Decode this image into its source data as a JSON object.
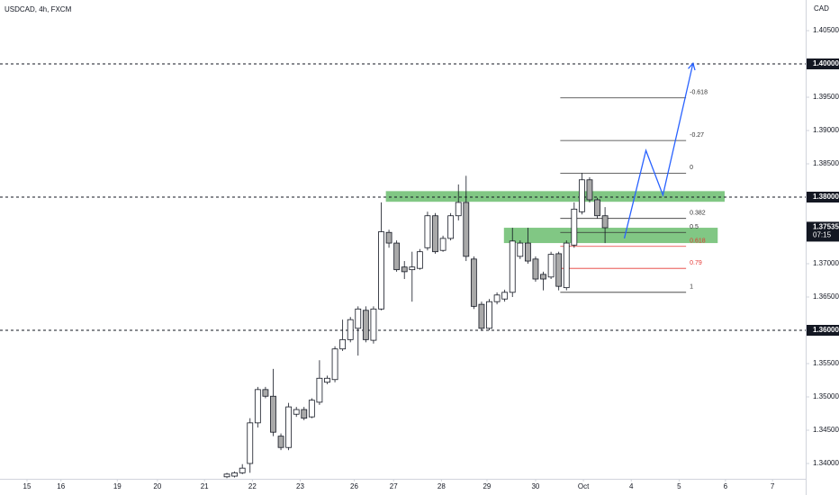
{
  "chart_data": {
    "type": "candlestick",
    "title": "USDCAD, 4h, FXCM",
    "currency": "CAD",
    "up_color": "#ffffff",
    "down_color": "#a9a9a9",
    "xlim": [
      0,
      104.4
    ],
    "ylim": [
      1.3377,
      1.4096
    ],
    "grid": false,
    "x": [
      29.4,
      30.4,
      31.4,
      32.4,
      33.4,
      34.4,
      35.4,
      36.4,
      37.4,
      38.4,
      39.4,
      40.4,
      41.4,
      42.4,
      43.4,
      44.4,
      45.4,
      46.4,
      47.4,
      48.4,
      49.4,
      50.4,
      51.4,
      52.4,
      53.4,
      54.4,
      55.4,
      56.4,
      57.4,
      58.4,
      59.4,
      60.4,
      61.4,
      62.4,
      63.4,
      64.4,
      65.4,
      66.4,
      67.4,
      68.4,
      69.4,
      70.4,
      71.4,
      72.4,
      73.4,
      74.4,
      75.4,
      76.4,
      77.4,
      78.4
    ],
    "open": [
      1.338,
      1.3381,
      1.3386,
      1.34,
      1.3461,
      1.3511,
      1.3501,
      1.3441,
      1.3424,
      1.3474,
      1.3481,
      1.347,
      1.3492,
      1.3522,
      1.3526,
      1.3572,
      1.3586,
      1.3603,
      1.363,
      1.3585,
      1.3632,
      1.3747,
      1.3731,
      1.3695,
      1.3691,
      1.3693,
      1.3724,
      1.3772,
      1.372,
      1.3738,
      1.3772,
      1.3792,
      1.3707,
      1.3639,
      1.3603,
      1.3643,
      1.3647,
      1.3657,
      1.3711,
      1.3731,
      1.3707,
      1.3684,
      1.368,
      1.3715,
      1.3664,
      1.3728,
      1.3778,
      1.3826,
      1.3796,
      1.3772
    ],
    "high": [
      1.3386,
      1.3388,
      1.3399,
      1.3468,
      1.3515,
      1.3515,
      1.3542,
      1.3445,
      1.3491,
      1.3485,
      1.3485,
      1.3498,
      1.3555,
      1.3532,
      1.3576,
      1.3616,
      1.362,
      1.3636,
      1.3636,
      1.3636,
      1.3792,
      1.3751,
      1.3735,
      1.3704,
      1.3718,
      1.3722,
      1.3778,
      1.3776,
      1.3742,
      1.3776,
      1.3819,
      1.3832,
      1.3711,
      1.3643,
      1.3647,
      1.3657,
      1.3661,
      1.3754,
      1.3735,
      1.3754,
      1.3711,
      1.3688,
      1.3718,
      1.3718,
      1.3735,
      1.3792,
      1.3836,
      1.383,
      1.3799,
      1.3785
    ],
    "low": [
      1.3378,
      1.3379,
      1.3384,
      1.3386,
      1.3454,
      1.3498,
      1.3441,
      1.342,
      1.342,
      1.347,
      1.3465,
      1.3468,
      1.3488,
      1.3519,
      1.3522,
      1.3569,
      1.3582,
      1.3562,
      1.3582,
      1.358,
      1.363,
      1.3724,
      1.3688,
      1.3677,
      1.3643,
      1.3691,
      1.372,
      1.3715,
      1.3718,
      1.3735,
      1.3765,
      1.3704,
      1.3632,
      1.36,
      1.36,
      1.3639,
      1.3643,
      1.365,
      1.3707,
      1.37,
      1.3673,
      1.366,
      1.3677,
      1.366,
      1.366,
      1.3724,
      1.3774,
      1.3792,
      1.3768,
      1.3731
    ],
    "close": [
      1.3384,
      1.3386,
      1.3393,
      1.3461,
      1.3511,
      1.3501,
      1.3447,
      1.3424,
      1.3485,
      1.3481,
      1.3468,
      1.3495,
      1.3528,
      1.3528,
      1.3572,
      1.3586,
      1.3616,
      1.3632,
      1.3586,
      1.3632,
      1.3748,
      1.3731,
      1.3691,
      1.3688,
      1.3695,
      1.3718,
      1.3772,
      1.3718,
      1.3738,
      1.3772,
      1.3792,
      1.3711,
      1.3636,
      1.3603,
      1.3643,
      1.3653,
      1.3657,
      1.3734,
      1.3731,
      1.3704,
      1.3677,
      1.3677,
      1.3714,
      1.3666,
      1.3731,
      1.3782,
      1.3826,
      1.3796,
      1.3772,
      1.3754
    ],
    "xticks": [
      {
        "value": 3.5,
        "label": "15"
      },
      {
        "value": 7.9,
        "label": "16"
      },
      {
        "value": 15.2,
        "label": "19"
      },
      {
        "value": 20.4,
        "label": "20"
      },
      {
        "value": 26.5,
        "label": "21"
      },
      {
        "value": 32.7,
        "label": "22"
      },
      {
        "value": 38.9,
        "label": "23"
      },
      {
        "value": 45.9,
        "label": "26"
      },
      {
        "value": 51.0,
        "label": "27"
      },
      {
        "value": 57.2,
        "label": "28"
      },
      {
        "value": 63.1,
        "label": "29"
      },
      {
        "value": 69.4,
        "label": "30"
      },
      {
        "value": 75.6,
        "label": "Oct"
      },
      {
        "value": 81.8,
        "label": "4"
      },
      {
        "value": 88.0,
        "label": "5"
      },
      {
        "value": 94.0,
        "label": "6"
      },
      {
        "value": 100.1,
        "label": "7"
      }
    ],
    "yticks": [
      {
        "value": 1.405,
        "label": "1.40500"
      },
      {
        "value": 1.395,
        "label": "1.39500"
      },
      {
        "value": 1.39,
        "label": "1.39000"
      },
      {
        "value": 1.385,
        "label": "1.38500"
      },
      {
        "value": 1.37,
        "label": "1.37000"
      },
      {
        "value": 1.365,
        "label": "1.36500"
      },
      {
        "value": 1.355,
        "label": "1.35500"
      },
      {
        "value": 1.35,
        "label": "1.35000"
      },
      {
        "value": 1.345,
        "label": "1.34500"
      },
      {
        "value": 1.34,
        "label": "1.34000"
      }
    ],
    "levels": [
      {
        "value": 1.4,
        "label": "1.40000"
      },
      {
        "value": 1.38,
        "label": "1.38000"
      },
      {
        "value": 1.36,
        "label": "1.36000"
      }
    ],
    "last_price": {
      "value": 1.37535,
      "label": "1.37535",
      "countdown": "07:15"
    },
    "zones": [
      {
        "x": [
          50.0,
          93.9
        ],
        "y": [
          1.3809,
          1.3793
        ],
        "color": "#4caf50"
      },
      {
        "x": [
          65.3,
          93.0
        ],
        "y": [
          1.3754,
          1.3731
        ],
        "color": "#4caf50"
      }
    ],
    "fib": {
      "x": [
        72.6,
        88.9
      ],
      "levels": [
        {
          "label": "-0.618",
          "value": 1.3949,
          "color": "#333333"
        },
        {
          "label": "-0.27",
          "value": 1.3885,
          "color": "#333333"
        },
        {
          "label": "0",
          "value": 1.3836,
          "color": "#333333"
        },
        {
          "label": "0.382",
          "value": 1.3768,
          "color": "#333333"
        },
        {
          "label": "0.5",
          "value": 1.3747,
          "color": "#333333"
        },
        {
          "label": "0.618",
          "value": 1.3726,
          "color": "#e53935"
        },
        {
          "label": "0.79",
          "value": 1.3693,
          "color": "#e53935"
        },
        {
          "label": "1",
          "value": 1.3657,
          "color": "#333333"
        }
      ]
    },
    "projection": {
      "x": [
        80.9,
        83.7,
        85.9,
        89.8
      ],
      "y": [
        1.3738,
        1.387,
        1.3803,
        1.4001
      ],
      "color": "#2962ff"
    }
  }
}
